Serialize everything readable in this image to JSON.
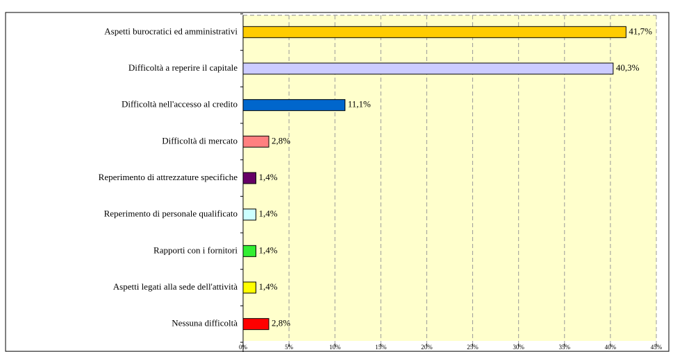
{
  "chart_data": {
    "type": "bar",
    "orientation": "horizontal",
    "categories": [
      "Aspetti burocratici ed amministrativi",
      "Difficoltà a reperire il capitale",
      "Difficoltà nell'accesso al credito",
      "Difficoltà di mercato",
      "Reperimento di attrezzature specifiche",
      "Reperimento di personale qualificato",
      "Rapporti con i fornitori",
      "Aspetti legati alla sede dell'attività",
      "Nessuna difficoltà"
    ],
    "values": [
      41.7,
      40.3,
      11.1,
      2.8,
      1.4,
      1.4,
      1.4,
      1.4,
      2.8
    ],
    "value_labels": [
      "41,7%",
      "40,3%",
      "11,1%",
      "2,8%",
      "1,4%",
      "1,4%",
      "1,4%",
      "1,4%",
      "2,8%"
    ],
    "colors": [
      "#ffcc00",
      "#ccccff",
      "#0066cc",
      "#ff8080",
      "#660066",
      "#ccffff",
      "#33ee33",
      "#ffff00",
      "#ff0000"
    ],
    "xlim": [
      0,
      45
    ],
    "xticks": [
      {
        "value": 0,
        "label": "0%"
      },
      {
        "value": 5,
        "label": "5%"
      },
      {
        "value": 10,
        "label": "10%"
      },
      {
        "value": 15,
        "label": "15%"
      },
      {
        "value": 20,
        "label": "20%"
      },
      {
        "value": 25,
        "label": "25%"
      },
      {
        "value": 30,
        "label": "30%"
      },
      {
        "value": 35,
        "label": "35%"
      },
      {
        "value": 40,
        "label": "40%"
      },
      {
        "value": 45,
        "label": "45%"
      }
    ],
    "grid": true
  }
}
